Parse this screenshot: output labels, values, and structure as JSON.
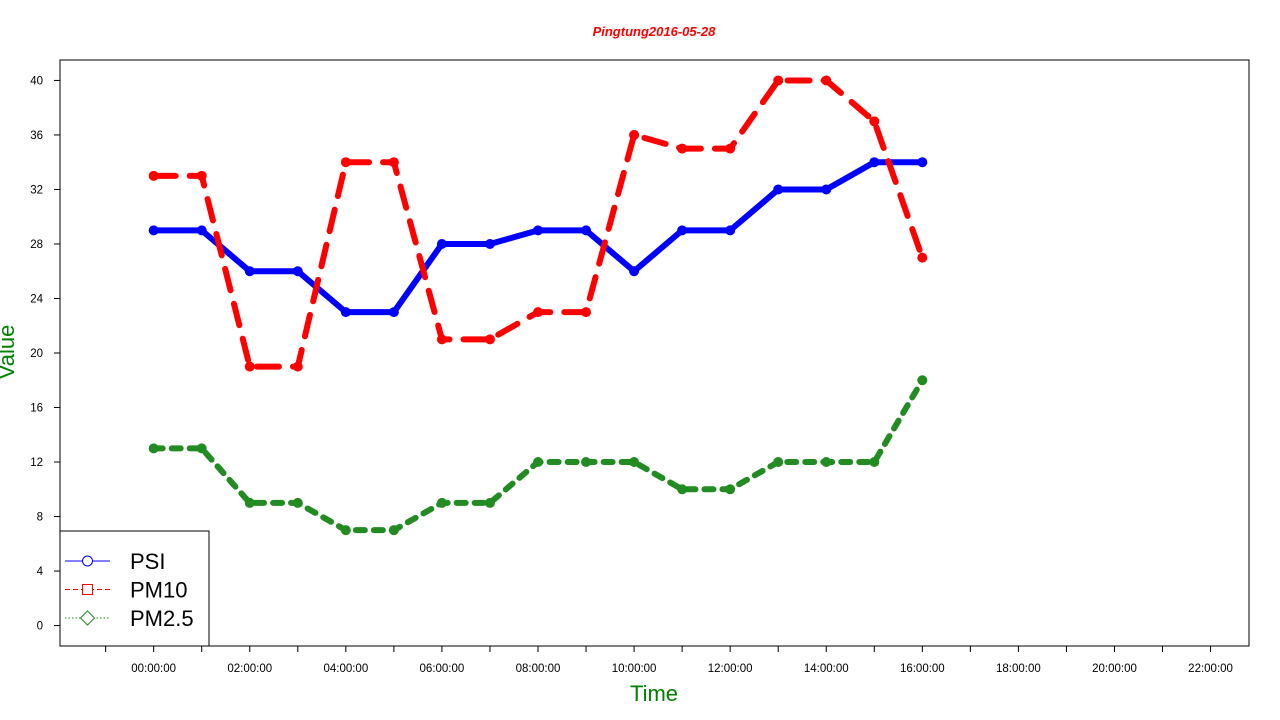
{
  "chart_data": {
    "type": "line",
    "title": "Pingtung2016-05-28",
    "xlabel": "Time",
    "ylabel": "Value",
    "x": [
      "00:00:00",
      "01:00:00",
      "02:00:00",
      "03:00:00",
      "04:00:00",
      "05:00:00",
      "06:00:00",
      "07:00:00",
      "08:00:00",
      "09:00:00",
      "10:00:00",
      "11:00:00",
      "12:00:00",
      "13:00:00",
      "14:00:00",
      "15:00:00",
      "16:00:00"
    ],
    "x_tick_labels": [
      "00:00:00",
      "02:00:00",
      "04:00:00",
      "06:00:00",
      "08:00:00",
      "10:00:00",
      "12:00:00",
      "14:00:00",
      "16:00:00",
      "18:00:00",
      "20:00:00",
      "22:00:00"
    ],
    "xlim_hours": [
      -1.95,
      22.8
    ],
    "ylim": [
      -1.5,
      41.5
    ],
    "y_ticks": [
      0,
      4,
      8,
      12,
      16,
      20,
      24,
      28,
      32,
      36,
      40
    ],
    "legend_position": "bottom-left",
    "grid": false,
    "title_color": "#ff0000",
    "label_color": "#008000",
    "series": [
      {
        "name": "PSI",
        "color": "#0000ff",
        "line_style": "solid",
        "marker": "circle",
        "values": [
          29,
          29,
          26,
          26,
          23,
          23,
          28,
          28,
          29,
          29,
          26,
          29,
          29,
          32,
          32,
          34,
          34
        ]
      },
      {
        "name": "PM10",
        "color": "#ff0000",
        "line_style": "dashed",
        "marker": "square",
        "values": [
          33,
          33,
          19,
          19,
          34,
          34,
          21,
          21,
          23,
          23,
          36,
          35,
          35,
          40,
          40,
          37,
          27
        ]
      },
      {
        "name": "PM2.5",
        "color": "#228b22",
        "line_style": "dotted",
        "marker": "diamond",
        "values": [
          13,
          13,
          9,
          9,
          7,
          7,
          9,
          9,
          12,
          12,
          12,
          10,
          10,
          12,
          12,
          12,
          18
        ]
      }
    ]
  }
}
